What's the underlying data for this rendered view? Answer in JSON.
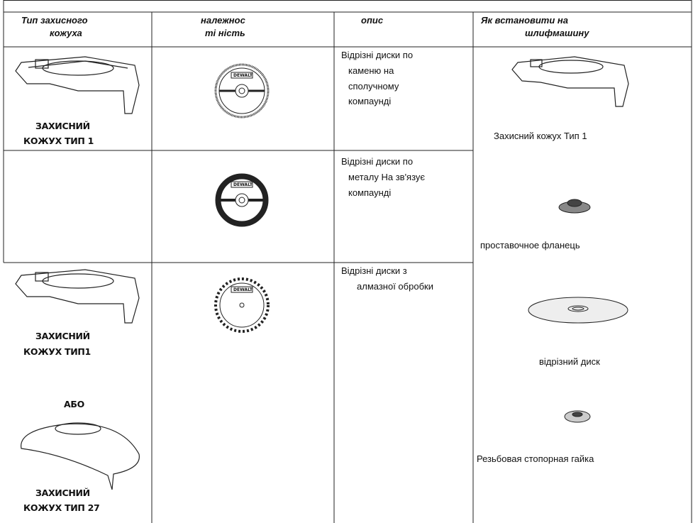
{
  "table": {
    "header": [
      [
        "Тип захисного",
        "кожуха"
      ],
      [
        "належнос",
        "ті ність"
      ],
      [
        "опис"
      ],
      [
        "Як встановити на",
        "шлифмашину"
      ]
    ],
    "rows": [
      {
        "guard": [
          "ЗАХИСНИЙ",
          "КОЖУХ ТИП 1"
        ],
        "description": [
          "Відрізні диски по",
          "каменю на",
          "сполучному",
          "компаунді"
        ]
      },
      {
        "description": [
          "Відрізні диски по",
          "металу На зв'язує",
          "компаунді"
        ]
      },
      {
        "guard": [
          "ЗАХИСНИЙ",
          "КОЖУХ ТИП1"
        ],
        "or": "АБО",
        "guard2": [
          "ЗАХИСНИЙ",
          "КОЖУХ ТИП 27"
        ],
        "description": [
          "Відрізні диски з",
          "алмазної обробки"
        ]
      }
    ],
    "disc_brand": "DEWALT",
    "install": [
      "Захисний кожух Тип 1",
      "проставочное фланець",
      "відрізний диск",
      "Резьбовая стопорная гайка"
    ]
  }
}
